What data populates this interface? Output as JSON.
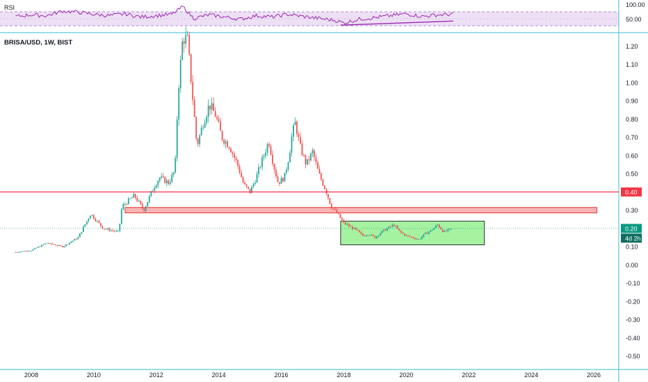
{
  "rsi_panel": {
    "label": "RSI",
    "axis_ticks": [
      "100.00",
      "50.00"
    ],
    "colors": {
      "line": "#9c27b0",
      "band_fill": "#ede0f5",
      "band_border": "#b388d6"
    }
  },
  "main_panel": {
    "title": "BRISA/USD, 1W, BIST",
    "price_labels": {
      "resistance": "0.40",
      "current": "0.20",
      "countdown": "4d 2h"
    },
    "colors": {
      "up": "#26a69a",
      "down": "#ef5350",
      "resistance_line": "#f23645",
      "red_zone_fill": "#f8b4b4",
      "red_zone_border": "#e53935",
      "green_zone_fill": "#a5f2a0",
      "green_zone_border": "#2e2e2e",
      "current_label_bg": "#089981",
      "countdown_bg": "#0d6e5f",
      "resistance_label_bg": "#f23645",
      "axis_text": "#131722",
      "separator": "#5ec9d6"
    }
  },
  "chart_data": {
    "type": "line",
    "x_axis": {
      "ticks": [
        "2008",
        "2010",
        "2012",
        "2014",
        "2016",
        "2018",
        "2020",
        "2022",
        "2024",
        "2026"
      ],
      "range": [
        2007.0,
        2026.8
      ]
    },
    "y_axis": {
      "ticks": [
        "1.20",
        "1.10",
        "1.00",
        "0.90",
        "0.80",
        "0.70",
        "0.60",
        "0.50",
        "0.40",
        "0.30",
        "0.20",
        "0.10",
        "0.00",
        "-0.10",
        "-0.20",
        "-0.30",
        "-0.40",
        "-0.50"
      ],
      "range": [
        -0.57,
        1.27
      ]
    },
    "price_path": [
      [
        2007.5,
        0.07
      ],
      [
        2008.0,
        0.08
      ],
      [
        2008.5,
        0.12
      ],
      [
        2009.0,
        0.1
      ],
      [
        2009.5,
        0.15
      ],
      [
        2009.9,
        0.28
      ],
      [
        2010.3,
        0.2
      ],
      [
        2010.8,
        0.18
      ],
      [
        2010.9,
        0.32
      ],
      [
        2011.3,
        0.38
      ],
      [
        2011.6,
        0.3
      ],
      [
        2011.9,
        0.42
      ],
      [
        2012.1,
        0.48
      ],
      [
        2012.4,
        0.45
      ],
      [
        2012.6,
        0.52
      ],
      [
        2012.7,
        0.95
      ],
      [
        2012.85,
        1.25
      ],
      [
        2013.0,
        1.23
      ],
      [
        2013.15,
        0.95
      ],
      [
        2013.3,
        0.65
      ],
      [
        2013.5,
        0.78
      ],
      [
        2013.7,
        0.88
      ],
      [
        2013.9,
        0.82
      ],
      [
        2014.1,
        0.7
      ],
      [
        2014.35,
        0.65
      ],
      [
        2014.6,
        0.55
      ],
      [
        2014.8,
        0.44
      ],
      [
        2015.0,
        0.4
      ],
      [
        2015.2,
        0.48
      ],
      [
        2015.4,
        0.58
      ],
      [
        2015.6,
        0.68
      ],
      [
        2015.75,
        0.55
      ],
      [
        2015.9,
        0.45
      ],
      [
        2016.1,
        0.48
      ],
      [
        2016.25,
        0.6
      ],
      [
        2016.35,
        0.72
      ],
      [
        2016.45,
        0.78
      ],
      [
        2016.6,
        0.65
      ],
      [
        2016.8,
        0.55
      ],
      [
        2017.0,
        0.62
      ],
      [
        2017.2,
        0.5
      ],
      [
        2017.4,
        0.42
      ],
      [
        2017.6,
        0.32
      ],
      [
        2017.8,
        0.28
      ],
      [
        2018.0,
        0.23
      ],
      [
        2018.2,
        0.21
      ],
      [
        2018.4,
        0.19
      ],
      [
        2018.6,
        0.16
      ],
      [
        2018.8,
        0.17
      ],
      [
        2019.0,
        0.15
      ],
      [
        2019.2,
        0.18
      ],
      [
        2019.4,
        0.2
      ],
      [
        2019.6,
        0.22
      ],
      [
        2019.8,
        0.18
      ],
      [
        2020.0,
        0.16
      ],
      [
        2020.2,
        0.15
      ],
      [
        2020.4,
        0.14
      ],
      [
        2020.6,
        0.17
      ],
      [
        2020.8,
        0.19
      ],
      [
        2021.0,
        0.22
      ],
      [
        2021.2,
        0.18
      ],
      [
        2021.5,
        0.2
      ]
    ],
    "rsi": {
      "range": [
        0,
        100
      ],
      "values": [
        [
          2007.5,
          52
        ],
        [
          2008.0,
          58
        ],
        [
          2008.5,
          55
        ],
        [
          2009.0,
          72
        ],
        [
          2009.5,
          68
        ],
        [
          2010.0,
          60
        ],
        [
          2010.5,
          55
        ],
        [
          2011.0,
          62
        ],
        [
          2011.5,
          50
        ],
        [
          2012.0,
          55
        ],
        [
          2012.5,
          60
        ],
        [
          2012.85,
          88
        ],
        [
          2013.2,
          45
        ],
        [
          2013.7,
          58
        ],
        [
          2014.2,
          50
        ],
        [
          2014.7,
          42
        ],
        [
          2015.2,
          55
        ],
        [
          2015.7,
          50
        ],
        [
          2016.2,
          60
        ],
        [
          2016.7,
          52
        ],
        [
          2017.2,
          45
        ],
        [
          2017.7,
          38
        ],
        [
          2018.0,
          28
        ],
        [
          2018.5,
          42
        ],
        [
          2019.0,
          48
        ],
        [
          2019.5,
          55
        ],
        [
          2020.0,
          62
        ],
        [
          2020.5,
          52
        ],
        [
          2021.0,
          58
        ],
        [
          2021.5,
          60
        ]
      ]
    },
    "annotations": [
      {
        "kind": "horizontal_line",
        "y": 0.4
      },
      {
        "kind": "zone",
        "x": [
          2011.0,
          2026.1
        ],
        "y": [
          0.285,
          0.315
        ]
      },
      {
        "kind": "zone",
        "x": [
          2017.9,
          2022.5
        ],
        "y": [
          0.11,
          0.24
        ]
      },
      {
        "kind": "rsi_trendline",
        "x": [
          2017.9,
          2021.5
        ],
        "y": [
          20,
          35
        ]
      }
    ]
  }
}
